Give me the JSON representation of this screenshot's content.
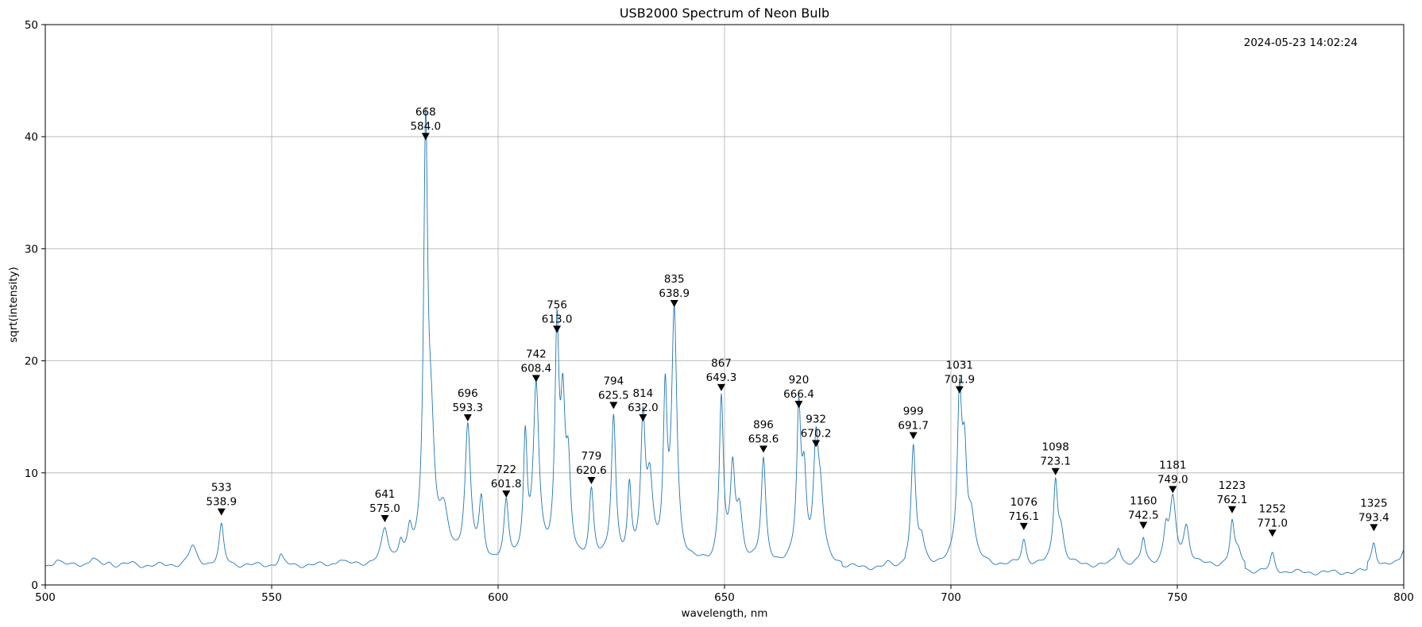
{
  "chart_data": {
    "type": "line",
    "title": "USB2000 Spectrum of Neon Bulb",
    "xlabel": "wavelength, nm",
    "ylabel": "sqrt(intensity)",
    "timestamp": "2024-05-23 14:02:24",
    "xlim": [
      500,
      800
    ],
    "ylim": [
      0,
      50
    ],
    "x_ticks": [
      500,
      550,
      600,
      650,
      700,
      750,
      800
    ],
    "y_ticks": [
      0,
      10,
      20,
      30,
      40,
      50
    ],
    "grid": true,
    "line_color": "#1f77b4",
    "baseline": 1.7,
    "peaks": [
      {
        "index": "533",
        "wavelength": "538.9",
        "x": 538.9,
        "y": 5.2,
        "w": 0.6
      },
      {
        "index": "641",
        "wavelength": "575.0",
        "x": 575.0,
        "y": 4.6,
        "w": 0.9
      },
      {
        "index": "668",
        "wavelength": "584.0",
        "x": 584.0,
        "y": 38.7,
        "w": 0.55
      },
      {
        "index": "696",
        "wavelength": "593.3",
        "x": 593.3,
        "y": 13.6,
        "w": 0.75
      },
      {
        "index": "722",
        "wavelength": "601.8",
        "x": 601.8,
        "y": 6.8,
        "w": 0.6
      },
      {
        "index": "742",
        "wavelength": "608.4",
        "x": 608.4,
        "y": 17.1,
        "w": 0.75
      },
      {
        "index": "756",
        "wavelength": "613.0",
        "x": 613.0,
        "y": 21.5,
        "w": 0.55
      },
      {
        "index": "779",
        "wavelength": "620.6",
        "x": 620.6,
        "y": 8.0,
        "w": 0.6
      },
      {
        "index": "794",
        "wavelength": "625.5",
        "x": 625.5,
        "y": 14.7,
        "w": 0.6
      },
      {
        "index": "814",
        "wavelength": "632.0",
        "x": 632.0,
        "y": 13.6,
        "w": 0.6
      },
      {
        "index": "835",
        "wavelength": "638.9",
        "x": 638.9,
        "y": 23.8,
        "w": 0.7
      },
      {
        "index": "867",
        "wavelength": "649.3",
        "x": 649.3,
        "y": 16.3,
        "w": 0.55
      },
      {
        "index": "896",
        "wavelength": "658.6",
        "x": 658.6,
        "y": 10.8,
        "w": 0.6
      },
      {
        "index": "920",
        "wavelength": "666.4",
        "x": 666.4,
        "y": 14.8,
        "w": 0.55
      },
      {
        "index": "932",
        "wavelength": "670.2",
        "x": 670.2,
        "y": 11.3,
        "w": 0.65
      },
      {
        "index": "999",
        "wavelength": "691.7",
        "x": 691.7,
        "y": 12.0,
        "w": 0.6
      },
      {
        "index": "1031",
        "wavelength": "701.9",
        "x": 701.9,
        "y": 16.1,
        "w": 0.6
      },
      {
        "index": "1076",
        "wavelength": "716.1",
        "x": 716.1,
        "y": 3.9,
        "w": 0.6
      },
      {
        "index": "1098",
        "wavelength": "723.1",
        "x": 723.1,
        "y": 8.8,
        "w": 0.55
      },
      {
        "index": "1160",
        "wavelength": "742.5",
        "x": 742.5,
        "y": 4.0,
        "w": 0.55
      },
      {
        "index": "1181",
        "wavelength": "749.0",
        "x": 749.0,
        "y": 7.2,
        "w": 0.8
      },
      {
        "index": "1223",
        "wavelength": "762.1",
        "x": 762.1,
        "y": 5.4,
        "w": 0.55
      },
      {
        "index": "1252",
        "wavelength": "771.0",
        "x": 771.0,
        "y": 3.3,
        "w": 0.6
      },
      {
        "index": "1325",
        "wavelength": "793.4",
        "x": 793.4,
        "y": 3.8,
        "w": 0.6
      }
    ],
    "minor_peaks": [
      {
        "x": 502.5,
        "y": 2.2,
        "w": 0.8
      },
      {
        "x": 507,
        "y": 1.9,
        "w": 0.8
      },
      {
        "x": 510.5,
        "y": 2.3,
        "w": 0.8
      },
      {
        "x": 514,
        "y": 2.0,
        "w": 0.8
      },
      {
        "x": 519,
        "y": 1.9,
        "w": 1.0
      },
      {
        "x": 532.5,
        "y": 3.4,
        "w": 1.0
      },
      {
        "x": 552,
        "y": 2.6,
        "w": 0.6
      },
      {
        "x": 565,
        "y": 2.2,
        "w": 0.8
      },
      {
        "x": 578.5,
        "y": 3.4,
        "w": 0.6
      },
      {
        "x": 580.5,
        "y": 4.0,
        "w": 0.6
      },
      {
        "x": 585.2,
        "y": 11.5,
        "w": 0.9
      },
      {
        "x": 588,
        "y": 5.5,
        "w": 1.3
      },
      {
        "x": 596.3,
        "y": 6.8,
        "w": 0.6
      },
      {
        "x": 606.0,
        "y": 12.6,
        "w": 0.5
      },
      {
        "x": 614.3,
        "y": 14.0,
        "w": 0.6
      },
      {
        "x": 615.5,
        "y": 9.0,
        "w": 0.6
      },
      {
        "x": 629,
        "y": 7.9,
        "w": 0.5
      },
      {
        "x": 633.5,
        "y": 8.5,
        "w": 0.8
      },
      {
        "x": 636.9,
        "y": 15.5,
        "w": 0.5
      },
      {
        "x": 651.8,
        "y": 9.5,
        "w": 0.6
      },
      {
        "x": 653.3,
        "y": 6.0,
        "w": 0.8
      },
      {
        "x": 667.6,
        "y": 8.6,
        "w": 0.6
      },
      {
        "x": 671.2,
        "y": 6.8,
        "w": 0.8
      },
      {
        "x": 686,
        "y": 2.0,
        "w": 0.7
      },
      {
        "x": 693.5,
        "y": 3.6,
        "w": 0.7
      },
      {
        "x": 703.0,
        "y": 10.0,
        "w": 0.6
      },
      {
        "x": 704.5,
        "y": 5.5,
        "w": 0.9
      },
      {
        "x": 724.3,
        "y": 4.5,
        "w": 0.8
      },
      {
        "x": 737,
        "y": 3.3,
        "w": 0.7
      },
      {
        "x": 747.5,
        "y": 4.5,
        "w": 0.6
      },
      {
        "x": 752,
        "y": 5.0,
        "w": 0.8
      },
      {
        "x": 763.5,
        "y": 2.8,
        "w": 0.8
      },
      {
        "x": 800,
        "y": 3.2,
        "w": 0.7
      }
    ]
  }
}
